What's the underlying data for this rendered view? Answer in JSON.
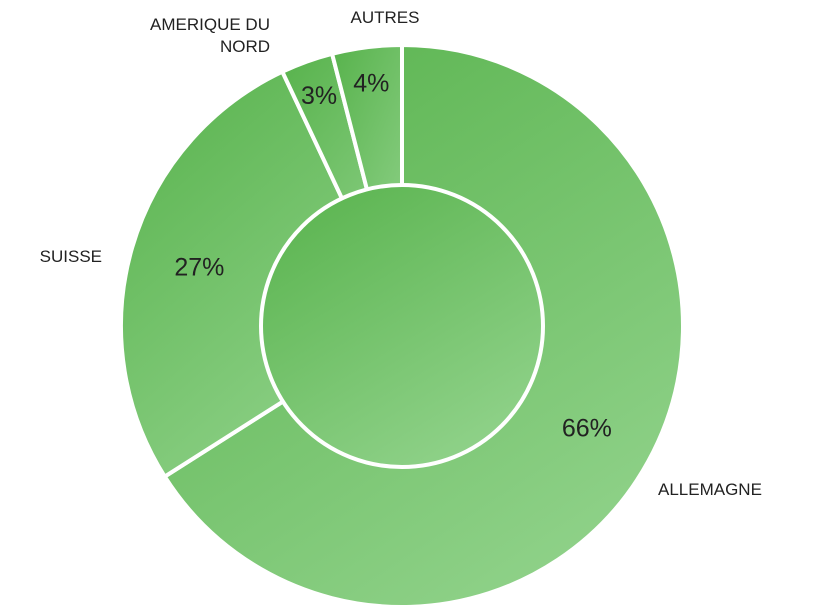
{
  "chart_data": {
    "type": "donut",
    "categories": [
      "ALLEMAGNE",
      "SUISSE",
      "AMERIQUE DU NORD",
      "AUTRES"
    ],
    "values": [
      66,
      27,
      3,
      4
    ],
    "value_labels": [
      "66%",
      "27%",
      "3%",
      "4%"
    ],
    "colors": [
      "#5cb551",
      "#92d38c"
    ]
  }
}
